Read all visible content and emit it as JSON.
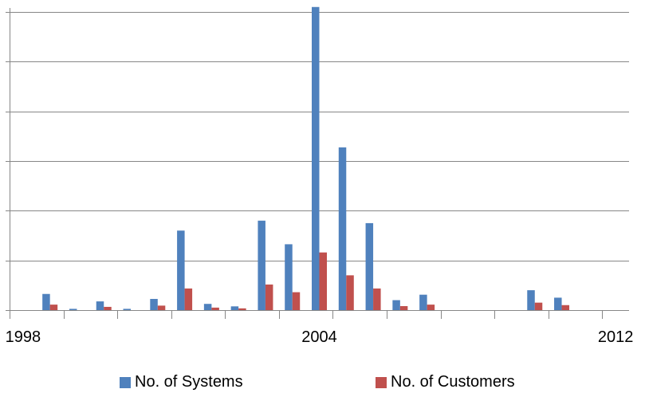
{
  "chart_data": {
    "type": "bar",
    "title": "",
    "xlabel": "",
    "ylabel": "",
    "x_tick_labels": [
      {
        "index": 0,
        "label": "1998"
      },
      {
        "index": 11,
        "label": "2004"
      },
      {
        "index": 22,
        "label": "2012"
      }
    ],
    "categories": [
      "",
      "",
      "",
      "",
      "",
      "",
      "",
      "",
      "",
      "",
      "",
      "",
      "",
      "",
      "",
      "",
      "",
      "",
      "",
      "",
      "",
      "",
      ""
    ],
    "ylim": [
      0,
      12
    ],
    "y_gridlines": [
      0,
      2,
      4,
      6,
      8,
      10,
      12
    ],
    "grid": true,
    "legend_position": "bottom",
    "series": [
      {
        "name": "No. of Systems",
        "color": "#4F81BD",
        "values": [
          0,
          0.65,
          0.05,
          0.35,
          0.05,
          0.45,
          3.2,
          0.25,
          0.15,
          3.6,
          2.65,
          12.2,
          6.55,
          3.5,
          0.4,
          0.62,
          0,
          0,
          0,
          0.8,
          0.5,
          0,
          0
        ]
      },
      {
        "name": "No. of Customers",
        "color": "#C0504D",
        "values": [
          0,
          0.22,
          0,
          0.13,
          0,
          0.18,
          0.87,
          0.1,
          0.07,
          1.03,
          0.72,
          2.32,
          1.4,
          0.87,
          0.16,
          0.22,
          0,
          0,
          0,
          0.3,
          0.2,
          0,
          0
        ]
      }
    ]
  },
  "legend": {
    "systems_label": "No. of Systems",
    "customers_label": "No. of Customers"
  }
}
